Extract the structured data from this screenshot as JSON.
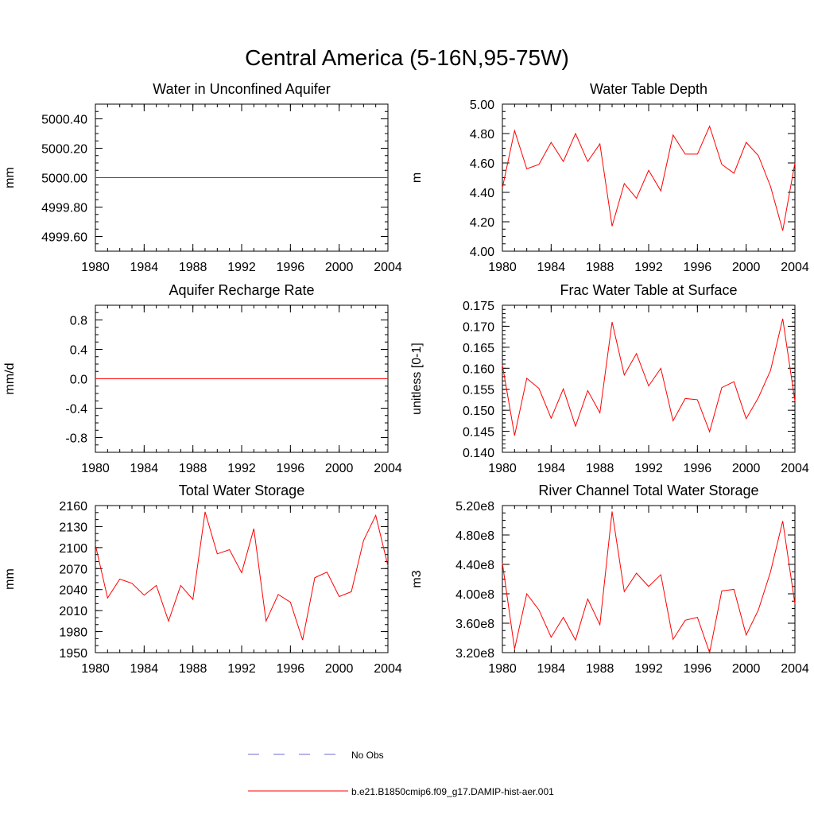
{
  "title": "Central America (5-16N,95-75W)",
  "colors": {
    "model": "#ff0000",
    "obs": "#6b6bcf",
    "axis": "#000000"
  },
  "legend": {
    "entries": [
      {
        "label": "No Obs",
        "style": "dashed"
      },
      {
        "label": "b.e21.B1850cmip6.f09_g17.DAMIP-hist-aer.001",
        "style": "solid"
      }
    ]
  },
  "chart_data": [
    {
      "id": "wa",
      "type": "line",
      "title": "Water in Unconfined Aquifer",
      "xlabel": "",
      "ylabel": "mm",
      "xlim": [
        1980,
        2004
      ],
      "ylim": [
        4999.5,
        5000.5
      ],
      "xticks": [
        1980,
        1984,
        1988,
        1992,
        1996,
        2000,
        2004
      ],
      "xtick_labels": [
        "1980",
        "1984",
        "1988",
        "1992",
        "1996",
        "2000",
        "2004"
      ],
      "yticks": [
        4999.6,
        4999.8,
        5000.0,
        5000.2,
        5000.4
      ],
      "ytick_labels": [
        "4999.60",
        "4999.80",
        "5000.00",
        "5000.20",
        "5000.40"
      ],
      "yminor_step": 0.05,
      "series": [
        {
          "x": [
            1980,
            2004
          ],
          "y": [
            5000.0,
            5000.0
          ]
        }
      ]
    },
    {
      "id": "zwt",
      "type": "line",
      "title": "Water Table Depth",
      "xlabel": "",
      "ylabel": "m",
      "xlim": [
        1980,
        2004
      ],
      "ylim": [
        4.0,
        5.0
      ],
      "xticks": [
        1980,
        1984,
        1988,
        1992,
        1996,
        2000,
        2004
      ],
      "xtick_labels": [
        "1980",
        "1984",
        "1988",
        "1992",
        "1996",
        "2000",
        "2004"
      ],
      "yticks": [
        4.0,
        4.2,
        4.4,
        4.6,
        4.8,
        5.0
      ],
      "ytick_labels": [
        "4.00",
        "4.20",
        "4.40",
        "4.60",
        "4.80",
        "5.00"
      ],
      "yminor_step": 0.05,
      "series": [
        {
          "x": [
            1980,
            1981,
            1982,
            1983,
            1984,
            1985,
            1986,
            1987,
            1988,
            1989,
            1990,
            1991,
            1992,
            1993,
            1994,
            1995,
            1996,
            1997,
            1998,
            1999,
            2000,
            2001,
            2002,
            2003,
            2004
          ],
          "y": [
            4.43,
            4.82,
            4.56,
            4.59,
            4.74,
            4.61,
            4.8,
            4.61,
            4.73,
            4.17,
            4.46,
            4.36,
            4.55,
            4.41,
            4.79,
            4.66,
            4.66,
            4.85,
            4.59,
            4.53,
            4.74,
            4.65,
            4.44,
            4.14,
            4.6
          ]
        }
      ]
    },
    {
      "id": "qcharge",
      "type": "line",
      "title": "Aquifer Recharge Rate",
      "xlabel": "",
      "ylabel": "mm/d",
      "xlim": [
        1980,
        2004
      ],
      "ylim": [
        -1.0,
        1.0
      ],
      "xticks": [
        1980,
        1984,
        1988,
        1992,
        1996,
        2000,
        2004
      ],
      "xtick_labels": [
        "1980",
        "1984",
        "1988",
        "1992",
        "1996",
        "2000",
        "2004"
      ],
      "yticks": [
        -0.8,
        -0.4,
        0.0,
        0.4,
        0.8
      ],
      "ytick_labels": [
        "-0.8",
        "-0.4",
        "0.0",
        "0.4",
        "0.8"
      ],
      "yminor_step": 0.1,
      "series": [
        {
          "x": [
            1980,
            2004
          ],
          "y": [
            0.0,
            0.0
          ]
        }
      ]
    },
    {
      "id": "frwtsat",
      "type": "line",
      "title": "Frac Water Table at Surface",
      "xlabel": "",
      "ylabel": "unitless [0-1]",
      "xlim": [
        1980,
        2004
      ],
      "ylim": [
        0.14,
        0.175
      ],
      "xticks": [
        1980,
        1984,
        1988,
        1992,
        1996,
        2000,
        2004
      ],
      "xtick_labels": [
        "1980",
        "1984",
        "1988",
        "1992",
        "1996",
        "2000",
        "2004"
      ],
      "yticks": [
        0.14,
        0.145,
        0.15,
        0.155,
        0.16,
        0.165,
        0.17,
        0.175
      ],
      "ytick_labels": [
        "0.140",
        "0.145",
        "0.150",
        "0.155",
        "0.160",
        "0.165",
        "0.170",
        "0.175"
      ],
      "yminor_step": 0.001,
      "series": [
        {
          "x": [
            1980,
            1981,
            1982,
            1983,
            1984,
            1985,
            1986,
            1987,
            1988,
            1989,
            1990,
            1991,
            1992,
            1993,
            1994,
            1995,
            1996,
            1997,
            1998,
            1999,
            2000,
            2001,
            2002,
            2003,
            2004
          ],
          "y": [
            0.1608,
            0.144,
            0.1576,
            0.1552,
            0.1481,
            0.1551,
            0.1462,
            0.1547,
            0.1494,
            0.171,
            0.1584,
            0.1635,
            0.1558,
            0.16,
            0.1475,
            0.1528,
            0.1525,
            0.1449,
            0.1554,
            0.1568,
            0.148,
            0.153,
            0.1595,
            0.1718,
            0.1522
          ]
        }
      ]
    },
    {
      "id": "tws",
      "type": "line",
      "title": "Total Water Storage",
      "xlabel": "",
      "ylabel": "mm",
      "xlim": [
        1980,
        2004
      ],
      "ylim": [
        1950,
        2160
      ],
      "xticks": [
        1980,
        1984,
        1988,
        1992,
        1996,
        2000,
        2004
      ],
      "xtick_labels": [
        "1980",
        "1984",
        "1988",
        "1992",
        "1996",
        "2000",
        "2004"
      ],
      "yticks": [
        1950,
        1980,
        2010,
        2040,
        2070,
        2100,
        2130,
        2160
      ],
      "ytick_labels": [
        "1950",
        "1980",
        "2010",
        "2040",
        "2070",
        "2100",
        "2130",
        "2160"
      ],
      "yminor_step": 10,
      "series": [
        {
          "x": [
            1980,
            1981,
            1982,
            1983,
            1984,
            1985,
            1986,
            1987,
            1988,
            1989,
            1990,
            1991,
            1992,
            1993,
            1994,
            1995,
            1996,
            1997,
            1998,
            1999,
            2000,
            2001,
            2002,
            2003,
            2004
          ],
          "y": [
            2104,
            2028,
            2055,
            2049,
            2032,
            2046,
            1995,
            2046,
            2026,
            2151,
            2091,
            2097,
            2064,
            2127,
            1995,
            2033,
            2022,
            1968,
            2057,
            2065,
            2030,
            2037,
            2110,
            2146,
            2074
          ]
        }
      ]
    },
    {
      "id": "volr",
      "type": "line",
      "title": "River Channel Total Water Storage",
      "xlabel": "",
      "ylabel": "m3",
      "xlim": [
        1980,
        2004
      ],
      "ylim": [
        320000000.0,
        520000000.0
      ],
      "xticks": [
        1980,
        1984,
        1988,
        1992,
        1996,
        2000,
        2004
      ],
      "xtick_labels": [
        "1980",
        "1984",
        "1988",
        "1992",
        "1996",
        "2000",
        "2004"
      ],
      "yticks": [
        320000000.0,
        360000000.0,
        400000000.0,
        440000000.0,
        480000000.0,
        520000000.0
      ],
      "ytick_labels": [
        "3.20e8",
        "3.60e8",
        "4.00e8",
        "4.40e8",
        "4.80e8",
        "5.20e8"
      ],
      "yminor_step": 10000000.0,
      "series": [
        {
          "x": [
            1980,
            1981,
            1982,
            1983,
            1984,
            1985,
            1986,
            1987,
            1988,
            1989,
            1990,
            1991,
            1992,
            1993,
            1994,
            1995,
            1996,
            1997,
            1998,
            1999,
            2000,
            2001,
            2002,
            2003,
            2004
          ],
          "y": [
            442000000.0,
            325000000.0,
            400000000.0,
            378000000.0,
            341000000.0,
            368000000.0,
            337000000.0,
            393000000.0,
            358000000.0,
            512000000.0,
            403000000.0,
            428000000.0,
            410000000.0,
            426000000.0,
            338000000.0,
            364000000.0,
            368000000.0,
            320000000.0,
            404000000.0,
            406000000.0,
            344000000.0,
            378000000.0,
            430000000.0,
            499000000.0,
            386000000.0
          ]
        }
      ]
    }
  ]
}
